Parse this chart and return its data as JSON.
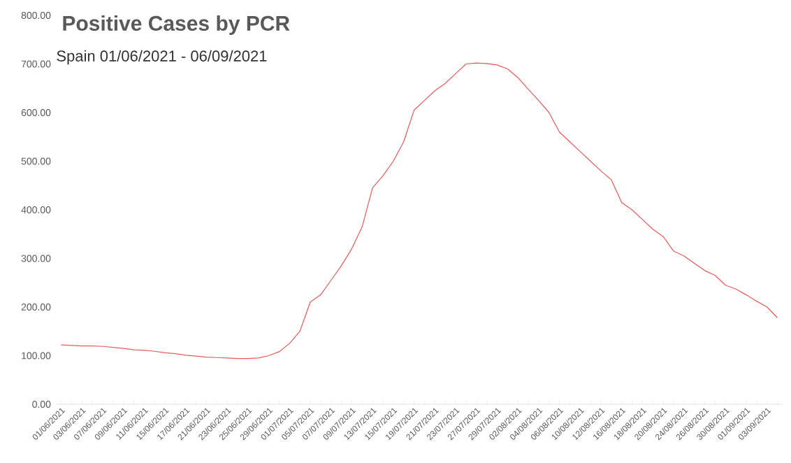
{
  "chart_data": {
    "type": "line",
    "title": "Positive Cases by PCR",
    "subtitle": "Spain 01/06/2021 - 06/09/2021",
    "categories": [
      "01/06/2021",
      null,
      "03/06/2021",
      null,
      "07/06/2021",
      null,
      "09/06/2021",
      null,
      "11/06/2021",
      null,
      "15/06/2021",
      null,
      "17/06/2021",
      null,
      "21/06/2021",
      null,
      "23/06/2021",
      null,
      "25/06/2021",
      null,
      "29/06/2021",
      null,
      "01/07/2021",
      null,
      "05/07/2021",
      null,
      "07/07/2021",
      null,
      "09/07/2021",
      null,
      "13/07/2021",
      null,
      "15/07/2021",
      null,
      "19/07/2021",
      null,
      "21/07/2021",
      null,
      "23/07/2021",
      null,
      "27/07/2021",
      null,
      "29/07/2021",
      null,
      "02/08/2021",
      null,
      "04/08/2021",
      null,
      "06/08/2021",
      null,
      "10/08/2021",
      null,
      "12/08/2021",
      null,
      "16/08/2021",
      null,
      "18/08/2021",
      null,
      "20/08/2021",
      null,
      "24/08/2021",
      null,
      "26/08/2021",
      null,
      "30/08/2021",
      null,
      "01/09/2021",
      null,
      "03/09/2021",
      null
    ],
    "series": [
      {
        "color": "#e35b5b",
        "values": [
          122,
          121,
          120,
          120,
          119,
          117,
          115,
          112,
          111,
          109,
          106,
          104,
          101,
          99,
          97,
          96,
          95,
          94,
          94,
          95,
          100,
          108,
          125,
          150,
          210,
          225,
          255,
          285,
          320,
          365,
          445,
          470,
          500,
          540,
          605,
          625,
          645,
          660,
          680,
          700,
          702,
          701,
          698,
          690,
          672,
          648,
          625,
          600,
          560,
          540,
          520,
          500,
          480,
          462,
          415,
          400,
          380,
          360,
          345,
          315,
          305,
          290,
          275,
          265,
          245,
          237,
          225,
          212,
          200,
          178
        ]
      }
    ],
    "ylim": [
      0,
      800
    ],
    "yticks": [
      {
        "value": 0,
        "label": "0.00"
      },
      {
        "value": 100,
        "label": "100.00"
      },
      {
        "value": 200,
        "label": "200.00"
      },
      {
        "value": 300,
        "label": "300.00"
      },
      {
        "value": 400,
        "label": "400.00"
      },
      {
        "value": 500,
        "label": "500.00"
      },
      {
        "value": 600,
        "label": "600.00"
      },
      {
        "value": 700,
        "label": "700.00"
      },
      {
        "value": 800,
        "label": "800.00"
      }
    ],
    "marker": "none",
    "line_style": "solid"
  }
}
